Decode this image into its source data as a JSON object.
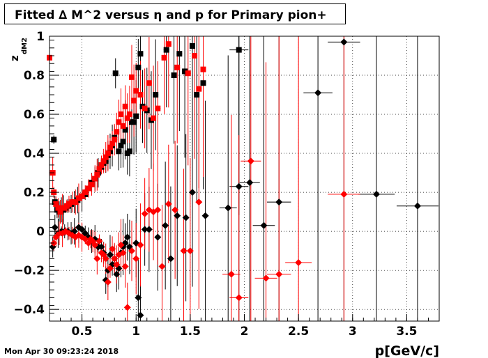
{
  "title": "Fitted ∆ M^2 versus η and p for Primary pion+",
  "timestamp": "Mon Apr 30 09:23:24 2018",
  "colors": {
    "series_black": "#000000",
    "series_red": "#ff0000"
  },
  "chart_data": {
    "type": "scatter",
    "title": "Fitted ∆ M^2 versus η and p for Primary pion+",
    "xlabel": "p[GeV/c]",
    "ylabel": "z_{dM2}",
    "ylabel_main": "z",
    "ylabel_sub": "dM2",
    "xlim": [
      0.2,
      3.8
    ],
    "ylim": [
      -0.46,
      1.0
    ],
    "xticks": [
      0.5,
      1,
      1.5,
      2,
      2.5,
      3,
      3.5
    ],
    "xtick_labels": [
      "0.5",
      "1",
      "1.5",
      "2",
      "2.5",
      "3",
      "3.5"
    ],
    "yticks": [
      -0.4,
      -0.2,
      0,
      0.2,
      0.4,
      0.6,
      0.8,
      1
    ],
    "ytick_labels": [
      "−0.4",
      "−0.2",
      "0",
      "0.2",
      "0.4",
      "0.6",
      "0.8",
      "1"
    ],
    "grid": true,
    "series": [
      {
        "marker": "square",
        "color": "#000000",
        "points": [
          [
            0.24,
            0.47
          ],
          [
            0.25,
            0.15
          ],
          [
            0.27,
            0.11
          ],
          [
            0.29,
            0.1
          ],
          [
            0.31,
            0.11
          ],
          [
            0.33,
            0.11
          ],
          [
            0.35,
            0.12
          ],
          [
            0.37,
            0.13
          ],
          [
            0.4,
            0.14
          ],
          [
            0.43,
            0.15
          ],
          [
            0.46,
            0.16
          ],
          [
            0.5,
            0.18
          ],
          [
            0.53,
            0.19
          ],
          [
            0.56,
            0.22
          ],
          [
            0.59,
            0.25
          ],
          [
            0.62,
            0.27
          ],
          [
            0.65,
            0.3
          ],
          [
            0.68,
            0.33
          ],
          [
            0.7,
            0.35
          ],
          [
            0.72,
            0.36
          ],
          [
            0.74,
            0.39
          ],
          [
            0.76,
            0.41
          ],
          [
            0.78,
            0.44
          ],
          [
            0.8,
            0.48
          ],
          [
            0.81,
            0.81
          ],
          [
            0.84,
            0.41
          ],
          [
            0.86,
            0.44
          ],
          [
            0.88,
            0.46
          ],
          [
            0.9,
            0.52
          ],
          [
            0.92,
            0.4
          ],
          [
            0.94,
            0.41
          ],
          [
            0.96,
            0.56
          ],
          [
            0.98,
            0.56
          ],
          [
            1.0,
            0.59
          ],
          [
            1.02,
            0.84
          ],
          [
            1.04,
            0.91
          ],
          [
            1.06,
            0.64
          ],
          [
            1.1,
            0.62
          ],
          [
            1.14,
            0.57
          ],
          [
            1.18,
            0.7
          ],
          [
            1.28,
            0.93
          ],
          [
            1.35,
            0.8
          ],
          [
            1.4,
            0.91
          ],
          [
            1.45,
            0.82
          ],
          [
            1.52,
            0.95
          ],
          [
            1.56,
            0.7
          ],
          [
            1.62,
            0.76
          ],
          [
            1.95,
            0.93
          ]
        ]
      },
      {
        "marker": "square",
        "color": "#ff0000",
        "points": [
          [
            0.2,
            0.89
          ],
          [
            0.23,
            0.3
          ],
          [
            0.24,
            0.2
          ],
          [
            0.26,
            0.14
          ],
          [
            0.28,
            0.12
          ],
          [
            0.3,
            0.1
          ],
          [
            0.32,
            0.12
          ],
          [
            0.34,
            0.12
          ],
          [
            0.36,
            0.13
          ],
          [
            0.38,
            0.14
          ],
          [
            0.41,
            0.15
          ],
          [
            0.44,
            0.15
          ],
          [
            0.47,
            0.17
          ],
          [
            0.5,
            0.18
          ],
          [
            0.53,
            0.2
          ],
          [
            0.56,
            0.22
          ],
          [
            0.59,
            0.24
          ],
          [
            0.62,
            0.27
          ],
          [
            0.64,
            0.29
          ],
          [
            0.66,
            0.32
          ],
          [
            0.68,
            0.34
          ],
          [
            0.7,
            0.36
          ],
          [
            0.72,
            0.38
          ],
          [
            0.74,
            0.4
          ],
          [
            0.76,
            0.43
          ],
          [
            0.78,
            0.45
          ],
          [
            0.8,
            0.47
          ],
          [
            0.82,
            0.51
          ],
          [
            0.84,
            0.56
          ],
          [
            0.86,
            0.6
          ],
          [
            0.88,
            0.54
          ],
          [
            0.9,
            0.64
          ],
          [
            0.92,
            0.58
          ],
          [
            0.94,
            0.6
          ],
          [
            0.96,
            0.79
          ],
          [
            0.98,
            0.67
          ],
          [
            1.0,
            0.72
          ],
          [
            1.04,
            0.7
          ],
          [
            1.08,
            0.63
          ],
          [
            1.12,
            0.76
          ],
          [
            1.16,
            0.58
          ],
          [
            1.2,
            0.63
          ],
          [
            1.26,
            0.89
          ],
          [
            1.3,
            0.96
          ],
          [
            1.38,
            0.84
          ],
          [
            1.48,
            0.81
          ],
          [
            1.54,
            0.9
          ],
          [
            1.58,
            0.73
          ],
          [
            1.62,
            0.83
          ]
        ]
      },
      {
        "marker": "diamond",
        "color": "#000000",
        "points": [
          [
            0.23,
            -0.08
          ],
          [
            0.25,
            0.02
          ],
          [
            0.28,
            -0.01
          ],
          [
            0.31,
            0.0
          ],
          [
            0.34,
            0.0
          ],
          [
            0.37,
            0.0
          ],
          [
            0.4,
            -0.01
          ],
          [
            0.43,
            0.0
          ],
          [
            0.47,
            0.02
          ],
          [
            0.5,
            0.01
          ],
          [
            0.53,
            -0.01
          ],
          [
            0.56,
            -0.03
          ],
          [
            0.59,
            -0.05
          ],
          [
            0.62,
            -0.04
          ],
          [
            0.65,
            -0.08
          ],
          [
            0.68,
            -0.08
          ],
          [
            0.7,
            -0.11
          ],
          [
            0.72,
            -0.25
          ],
          [
            0.74,
            -0.2
          ],
          [
            0.76,
            -0.12
          ],
          [
            0.78,
            -0.17
          ],
          [
            0.8,
            -0.14
          ],
          [
            0.82,
            -0.22
          ],
          [
            0.84,
            -0.19
          ],
          [
            0.86,
            -0.11
          ],
          [
            0.88,
            -0.08
          ],
          [
            0.9,
            -0.06
          ],
          [
            0.92,
            -0.03
          ],
          [
            0.94,
            -0.08
          ],
          [
            1.0,
            -0.06
          ],
          [
            1.02,
            -0.34
          ],
          [
            1.04,
            -0.43
          ],
          [
            1.08,
            0.01
          ],
          [
            1.12,
            0.01
          ],
          [
            1.2,
            -0.03
          ],
          [
            1.27,
            0.03
          ],
          [
            1.32,
            -0.14
          ],
          [
            1.38,
            0.08
          ],
          [
            1.46,
            0.07
          ],
          [
            1.52,
            0.2
          ],
          [
            1.64,
            0.08
          ],
          [
            1.85,
            0.12
          ],
          [
            1.95,
            0.23
          ],
          [
            2.05,
            0.25
          ],
          [
            2.18,
            0.03
          ],
          [
            2.32,
            0.15
          ],
          [
            2.68,
            0.71
          ],
          [
            2.92,
            0.97
          ],
          [
            3.22,
            0.19
          ],
          [
            3.6,
            0.13
          ]
        ]
      },
      {
        "marker": "diamond",
        "color": "#ff0000",
        "points": [
          [
            0.24,
            -0.06
          ],
          [
            0.26,
            -0.03
          ],
          [
            0.29,
            -0.01
          ],
          [
            0.32,
            -0.01
          ],
          [
            0.35,
            0.0
          ],
          [
            0.38,
            -0.01
          ],
          [
            0.41,
            -0.02
          ],
          [
            0.44,
            -0.03
          ],
          [
            0.47,
            -0.02
          ],
          [
            0.5,
            -0.03
          ],
          [
            0.53,
            -0.04
          ],
          [
            0.56,
            -0.06
          ],
          [
            0.58,
            -0.04
          ],
          [
            0.6,
            -0.05
          ],
          [
            0.62,
            -0.07
          ],
          [
            0.64,
            -0.14
          ],
          [
            0.66,
            -0.05
          ],
          [
            0.68,
            -0.11
          ],
          [
            0.7,
            -0.12
          ],
          [
            0.72,
            -0.14
          ],
          [
            0.74,
            -0.26
          ],
          [
            0.76,
            -0.19
          ],
          [
            0.78,
            -0.09
          ],
          [
            0.8,
            -0.14
          ],
          [
            0.82,
            -0.17
          ],
          [
            0.84,
            -0.12
          ],
          [
            0.86,
            -0.07
          ],
          [
            0.88,
            -0.11
          ],
          [
            0.9,
            -0.18
          ],
          [
            0.92,
            -0.39
          ],
          [
            0.96,
            -0.1
          ],
          [
            1.0,
            -0.14
          ],
          [
            1.04,
            -0.07
          ],
          [
            1.08,
            0.09
          ],
          [
            1.12,
            0.11
          ],
          [
            1.16,
            0.1
          ],
          [
            1.2,
            0.11
          ],
          [
            1.24,
            -0.18
          ],
          [
            1.3,
            0.14
          ],
          [
            1.36,
            0.11
          ],
          [
            1.44,
            -0.1
          ],
          [
            1.5,
            -0.1
          ],
          [
            1.58,
            0.15
          ],
          [
            1.88,
            -0.22
          ],
          [
            1.95,
            -0.34
          ],
          [
            2.06,
            0.36
          ],
          [
            2.2,
            -0.24
          ],
          [
            2.32,
            -0.22
          ],
          [
            2.5,
            -0.16
          ],
          [
            2.92,
            0.19
          ]
        ]
      }
    ]
  }
}
